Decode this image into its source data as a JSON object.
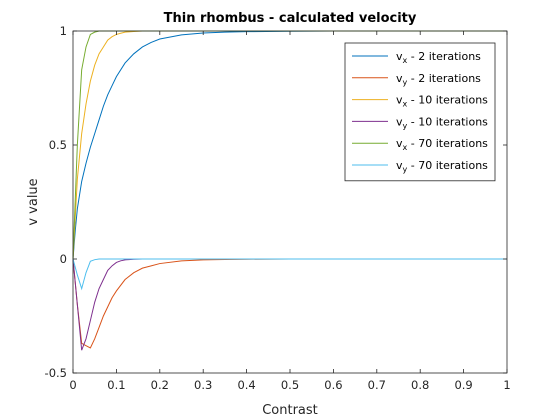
{
  "chart_data": {
    "type": "line",
    "title": "Thin rhombus - calculated velocity",
    "xlabel": "Contrast",
    "ylabel": "v value",
    "xlim": [
      0,
      1
    ],
    "ylim": [
      -0.5,
      1
    ],
    "xticks": [
      "0",
      "0.1",
      "0.2",
      "0.3",
      "0.4",
      "0.5",
      "0.6",
      "0.7",
      "0.8",
      "0.9",
      "1"
    ],
    "yticks": [
      "-0.5",
      "0",
      "0.5",
      "1"
    ],
    "grid": false,
    "legend_position": "top-right",
    "series": [
      {
        "name": "vx - 2 iterations",
        "name_base": "v",
        "name_sub": "x",
        "name_rest": " - 2 iterations",
        "color": "#0072BD",
        "x": [
          0,
          0.005,
          0.01,
          0.02,
          0.03,
          0.04,
          0.05,
          0.06,
          0.07,
          0.08,
          0.09,
          0.1,
          0.12,
          0.14,
          0.16,
          0.18,
          0.2,
          0.25,
          0.3,
          0.35,
          0.4,
          0.5,
          0.6,
          0.8,
          1
        ],
        "y": [
          0,
          0.12,
          0.22,
          0.34,
          0.42,
          0.49,
          0.55,
          0.61,
          0.67,
          0.72,
          0.76,
          0.8,
          0.86,
          0.9,
          0.93,
          0.95,
          0.965,
          0.983,
          0.991,
          0.995,
          0.997,
          0.999,
          1,
          1,
          1
        ]
      },
      {
        "name": "vy - 2 iterations",
        "name_base": "v",
        "name_sub": "y",
        "name_rest": " - 2 iterations",
        "color": "#D95319",
        "x": [
          0,
          0.01,
          0.02,
          0.03,
          0.04,
          0.05,
          0.06,
          0.07,
          0.08,
          0.09,
          0.1,
          0.12,
          0.14,
          0.16,
          0.18,
          0.2,
          0.25,
          0.3,
          0.35,
          0.4,
          0.5,
          0.6,
          0.8,
          1
        ],
        "y": [
          0,
          -0.2,
          -0.37,
          -0.38,
          -0.39,
          -0.35,
          -0.3,
          -0.25,
          -0.21,
          -0.17,
          -0.14,
          -0.09,
          -0.06,
          -0.04,
          -0.03,
          -0.02,
          -0.008,
          -0.004,
          -0.002,
          -0.001,
          0,
          0,
          0,
          0
        ]
      },
      {
        "name": "vx - 10 iterations",
        "name_base": "v",
        "name_sub": "x",
        "name_rest": " - 10 iterations",
        "color": "#EDB120",
        "x": [
          0,
          0.01,
          0.02,
          0.03,
          0.04,
          0.05,
          0.06,
          0.07,
          0.08,
          0.09,
          0.1,
          0.11,
          0.12,
          0.14,
          0.16,
          0.2,
          0.3,
          0.5,
          1
        ],
        "y": [
          0,
          0.35,
          0.55,
          0.68,
          0.78,
          0.85,
          0.9,
          0.93,
          0.96,
          0.975,
          0.985,
          0.99,
          0.995,
          0.998,
          1,
          1,
          1,
          1,
          1
        ]
      },
      {
        "name": "vy - 10 iterations",
        "name_base": "v",
        "name_sub": "y",
        "name_rest": " - 10 iterations",
        "color": "#7E2F8E",
        "x": [
          0,
          0.01,
          0.02,
          0.03,
          0.04,
          0.05,
          0.06,
          0.07,
          0.08,
          0.09,
          0.1,
          0.11,
          0.12,
          0.14,
          0.16,
          0.2,
          0.3,
          0.5,
          1
        ],
        "y": [
          0,
          -0.2,
          -0.4,
          -0.35,
          -0.27,
          -0.19,
          -0.13,
          -0.09,
          -0.05,
          -0.03,
          -0.015,
          -0.008,
          -0.004,
          -0.001,
          0,
          0,
          0,
          0,
          0
        ]
      },
      {
        "name": "vx - 70 iterations",
        "name_base": "v",
        "name_sub": "x",
        "name_rest": " - 70 iterations",
        "color": "#77AC30",
        "x": [
          0,
          0.01,
          0.02,
          0.03,
          0.04,
          0.05,
          0.06,
          0.08,
          0.1,
          0.2,
          0.5,
          1
        ],
        "y": [
          0,
          0.5,
          0.83,
          0.93,
          0.985,
          0.995,
          1,
          1,
          1,
          1,
          1,
          1
        ]
      },
      {
        "name": "vy - 70 iterations",
        "name_base": "v",
        "name_sub": "y",
        "name_rest": " - 70 iterations",
        "color": "#4DBEEE",
        "x": [
          0,
          0.01,
          0.02,
          0.03,
          0.04,
          0.05,
          0.06,
          0.08,
          0.1,
          0.2,
          0.5,
          1
        ],
        "y": [
          0,
          -0.07,
          -0.13,
          -0.06,
          -0.01,
          -0.003,
          0,
          0,
          0,
          0,
          0,
          0
        ]
      }
    ]
  }
}
